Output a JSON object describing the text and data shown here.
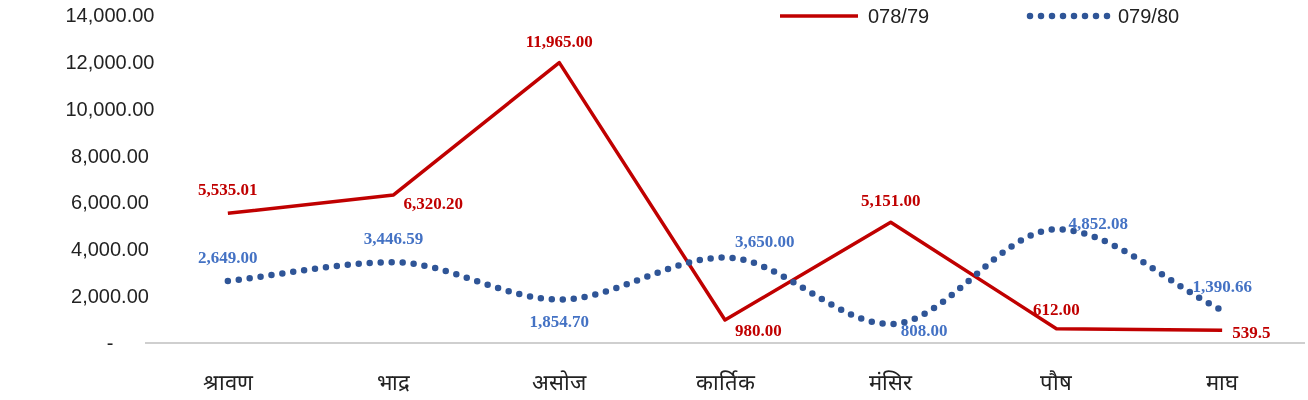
{
  "chart_data": {
    "type": "line",
    "categories": [
      "श्रावण",
      "भाद्र",
      "असोज",
      "कार्तिक",
      "मंसिर",
      "पौष",
      "माघ"
    ],
    "series": [
      {
        "name": "078/79",
        "color": "#c00000",
        "line_style": "solid",
        "values": [
          5535.01,
          6320.2,
          11965,
          980,
          5151,
          612,
          539.5
        ],
        "value_labels": [
          "5,535.01",
          "6,320.20",
          "11,965.00",
          "980.00",
          "5,151.00",
          "612.00",
          "539.5"
        ]
      },
      {
        "name": "079/80",
        "color": "#2f5597",
        "line_style": "dotted",
        "values": [
          2649,
          3446.59,
          1854.7,
          3650,
          808,
          4852.08,
          1390.66
        ],
        "value_labels": [
          "2,649.00",
          "3,446.59",
          "1,854.70",
          "3,650.00",
          "808.00",
          "4,852.08",
          "1,390.66"
        ]
      }
    ],
    "ylim": [
      0,
      14000
    ],
    "yticks": [
      {
        "value": 0,
        "label": "-"
      },
      {
        "value": 2000,
        "label": "2,000.00"
      },
      {
        "value": 4000,
        "label": "4,000.00"
      },
      {
        "value": 6000,
        "label": "6,000.00"
      },
      {
        "value": 8000,
        "label": "8,000.00"
      },
      {
        "value": 10000,
        "label": "10,000.00"
      },
      {
        "value": 12000,
        "label": "12,000.00"
      },
      {
        "value": 14000,
        "label": "14,000.00"
      }
    ],
    "legend": "top right"
  }
}
